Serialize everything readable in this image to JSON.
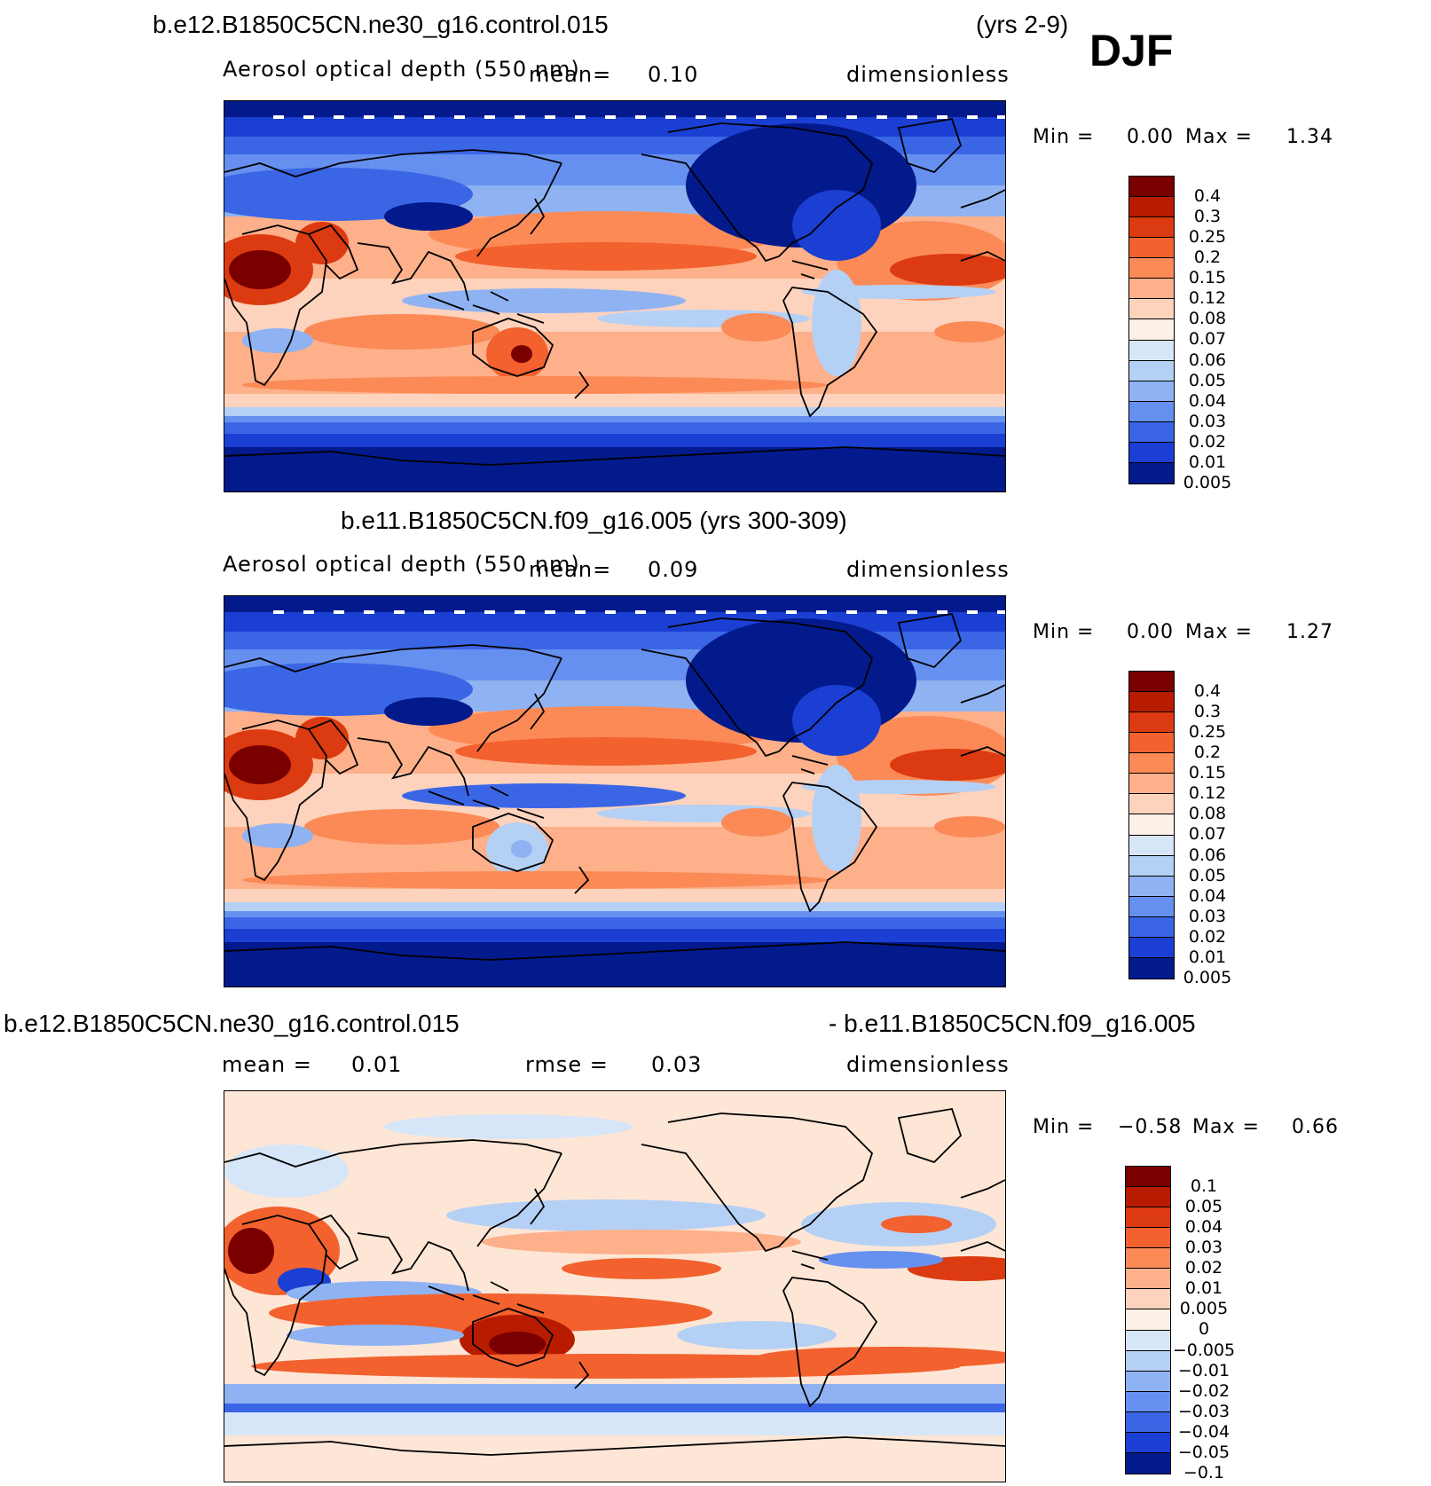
{
  "domain": "Chart",
  "season_label": "DJF",
  "chart_data": [
    {
      "type": "heatmap",
      "title": "b.e12.B1850C5CN.ne30_g16.control.015",
      "years": "(yrs 2-9)",
      "variable": "Aerosol optical depth (550 nm)",
      "mean_label": "mean=",
      "mean_value": "0.10",
      "units": "dimensionless",
      "min_label": "Min =",
      "min_value": "0.00",
      "max_label": "Max =",
      "max_value": "1.34",
      "colorbar_levels": [
        "0.4",
        "0.3",
        "0.25",
        "0.2",
        "0.15",
        "0.12",
        "0.08",
        "0.07",
        "0.06",
        "0.05",
        "0.04",
        "0.03",
        "0.02",
        "0.01",
        "0.005"
      ],
      "colorbar_colors": [
        "#7a0000",
        "#b81c00",
        "#dc3a10",
        "#f2612e",
        "#fb8a57",
        "#fdb08a",
        "#fdd3bd",
        "#fdf0e6",
        "#d6e6f8",
        "#b5d0f5",
        "#8fb3f2",
        "#6690ef",
        "#3a66e6",
        "#1a3fd2",
        "#031a8c"
      ],
      "background": "#fdd3bd"
    },
    {
      "type": "heatmap",
      "title": "b.e11.B1850C5CN.f09_g16.005 (yrs 300-309)",
      "variable": "Aerosol optical depth (550 nm)",
      "mean_label": "mean=",
      "mean_value": "0.09",
      "units": "dimensionless",
      "min_label": "Min =",
      "min_value": "0.00",
      "max_label": "Max =",
      "max_value": "1.27",
      "colorbar_levels": [
        "0.4",
        "0.3",
        "0.25",
        "0.2",
        "0.15",
        "0.12",
        "0.08",
        "0.07",
        "0.06",
        "0.05",
        "0.04",
        "0.03",
        "0.02",
        "0.01",
        "0.005"
      ],
      "colorbar_colors": [
        "#7a0000",
        "#b81c00",
        "#dc3a10",
        "#f2612e",
        "#fb8a57",
        "#fdb08a",
        "#fdd3bd",
        "#fdf0e6",
        "#d6e6f8",
        "#b5d0f5",
        "#8fb3f2",
        "#6690ef",
        "#3a66e6",
        "#1a3fd2",
        "#031a8c"
      ],
      "background": "#fdd3bd"
    },
    {
      "type": "heatmap",
      "title_left": "b.e12.B1850C5CN.ne30_g16.control.015",
      "title_right": "- b.e11.B1850C5CN.f09_g16.005",
      "mean_label": "mean =",
      "mean_value": "0.01",
      "rmse_label": "rmse =",
      "rmse_value": "0.03",
      "units": "dimensionless",
      "min_label": "Min =",
      "min_value": "−0.58",
      "max_label": "Max =",
      "max_value": "0.66",
      "colorbar_levels": [
        "0.1",
        "0.05",
        "0.04",
        "0.03",
        "0.02",
        "0.01",
        "0.005",
        "0",
        "−0.005",
        "−0.01",
        "−0.02",
        "−0.03",
        "−0.04",
        "−0.05",
        "−0.1"
      ],
      "colorbar_colors": [
        "#7a0000",
        "#b81c00",
        "#dc3a10",
        "#f2612e",
        "#fb8a57",
        "#fdb08a",
        "#fdd3bd",
        "#fdf0e6",
        "#d6e6f8",
        "#b5d0f5",
        "#8fb3f2",
        "#6690ef",
        "#3a66e6",
        "#1a3fd2",
        "#031a8c"
      ],
      "background": "#fde6d6"
    }
  ]
}
